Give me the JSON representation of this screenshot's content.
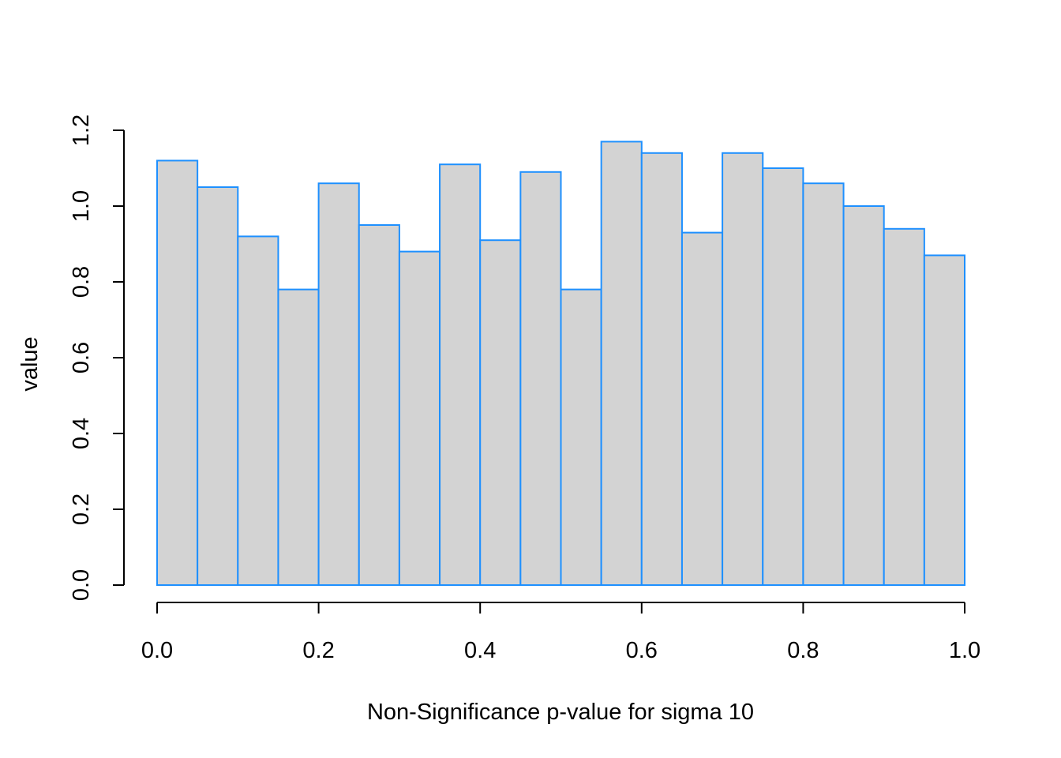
{
  "chart_data": {
    "type": "bar",
    "xlabel": "Non-Significance p-value for sigma 10",
    "ylabel": "value",
    "xlim": [
      0.0,
      1.0
    ],
    "ylim": [
      0.0,
      1.2
    ],
    "bin_width": 0.05,
    "bins": [
      {
        "x0": 0.0,
        "x1": 0.05,
        "value": 1.12
      },
      {
        "x0": 0.05,
        "x1": 0.1,
        "value": 1.05
      },
      {
        "x0": 0.1,
        "x1": 0.15,
        "value": 0.92
      },
      {
        "x0": 0.15,
        "x1": 0.2,
        "value": 0.78
      },
      {
        "x0": 0.2,
        "x1": 0.25,
        "value": 1.06
      },
      {
        "x0": 0.25,
        "x1": 0.3,
        "value": 0.95
      },
      {
        "x0": 0.3,
        "x1": 0.35,
        "value": 0.88
      },
      {
        "x0": 0.35,
        "x1": 0.4,
        "value": 1.11
      },
      {
        "x0": 0.4,
        "x1": 0.45,
        "value": 0.91
      },
      {
        "x0": 0.45,
        "x1": 0.5,
        "value": 1.09
      },
      {
        "x0": 0.5,
        "x1": 0.55,
        "value": 0.78
      },
      {
        "x0": 0.55,
        "x1": 0.6,
        "value": 1.17
      },
      {
        "x0": 0.6,
        "x1": 0.65,
        "value": 1.14
      },
      {
        "x0": 0.65,
        "x1": 0.7,
        "value": 0.93
      },
      {
        "x0": 0.7,
        "x1": 0.75,
        "value": 1.14
      },
      {
        "x0": 0.75,
        "x1": 0.8,
        "value": 1.1
      },
      {
        "x0": 0.8,
        "x1": 0.85,
        "value": 1.06
      },
      {
        "x0": 0.85,
        "x1": 0.9,
        "value": 1.0
      },
      {
        "x0": 0.9,
        "x1": 0.95,
        "value": 0.94
      },
      {
        "x0": 0.95,
        "x1": 1.0,
        "value": 0.87
      }
    ],
    "x_ticks": [
      0.0,
      0.2,
      0.4,
      0.6,
      0.8,
      1.0
    ],
    "x_tick_labels": [
      "0.0",
      "0.2",
      "0.4",
      "0.6",
      "0.8",
      "1.0"
    ],
    "y_ticks": [
      0.0,
      0.2,
      0.4,
      0.6,
      0.8,
      1.0,
      1.2
    ],
    "y_tick_labels": [
      "0.0",
      "0.2",
      "0.4",
      "0.6",
      "0.8",
      "1.0",
      "1.2"
    ],
    "grid": false,
    "colors": {
      "bar_fill": "#d3d3d3",
      "bar_border": "#1e90ff",
      "axis": "#000000"
    }
  }
}
